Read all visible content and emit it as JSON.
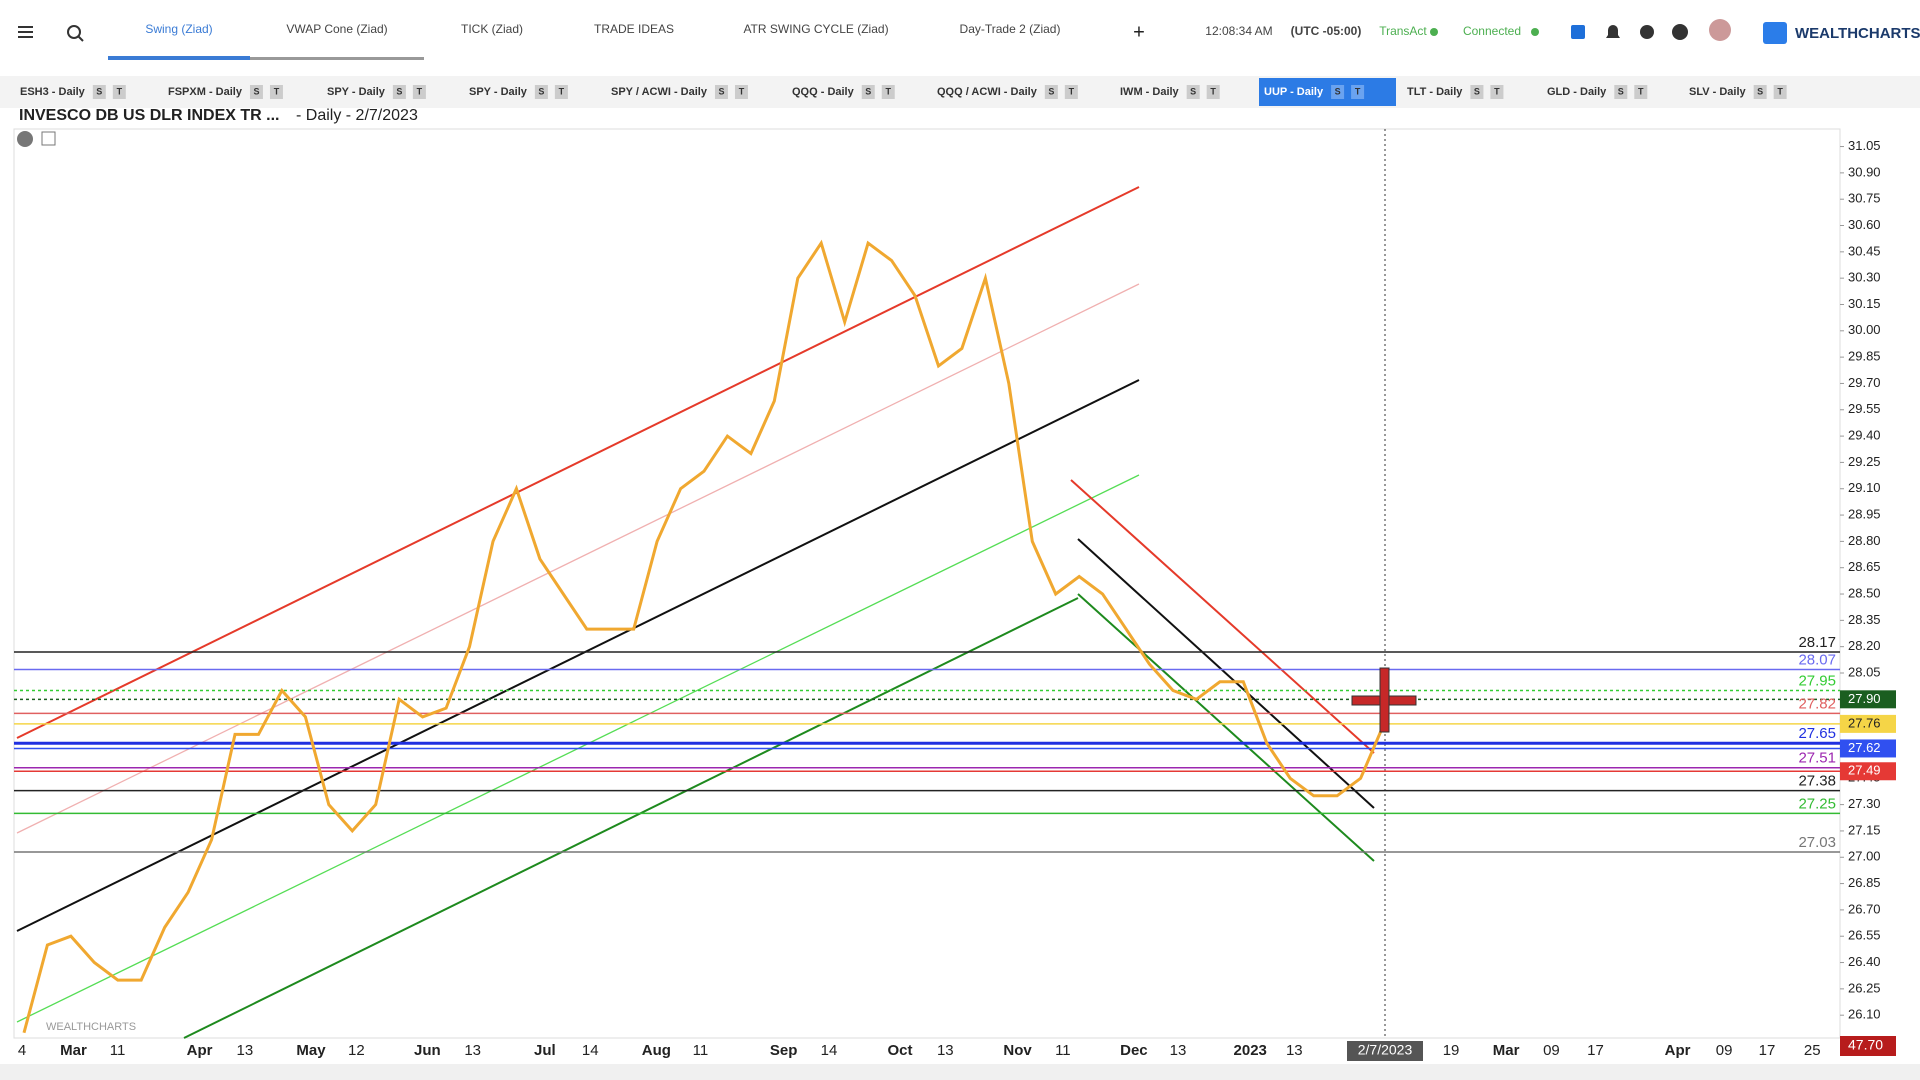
{
  "header": {
    "tabs": [
      "Swing (Ziad)",
      "VWAP Cone (Ziad)",
      "TICK (Ziad)",
      "TRADE IDEAS",
      "ATR SWING CYCLE (Ziad)",
      "Day-Trade 2 (Ziad)"
    ],
    "time": "12:08:34 AM",
    "timezone": "(UTC -05:00)",
    "transact": "TransAct",
    "connection": "Connected",
    "logo": "WEALTHCHARTS"
  },
  "symbol_tabs": [
    "ESH3 - Daily",
    "FSPXM - Daily",
    "SPY - Daily",
    "SPY - Daily",
    "SPY / ACWI - Daily",
    "QQQ - Daily",
    "QQQ / ACWI - Daily",
    "IWM - Daily",
    "UUP - Daily",
    "TLT - Daily",
    "GLD - Daily",
    "SLV - Daily"
  ],
  "tab_buttons": [
    "S",
    "T"
  ],
  "chart_data": {
    "type": "line",
    "title": "INVESCO DB US DLR INDEX TR ...",
    "subtitle": "- Daily - 2/7/2023",
    "watermark": "WEALTHCHARTS",
    "series": [
      {
        "color": "#f0a830",
        "values": [
          26.0,
          26.5,
          26.55,
          26.4,
          26.3,
          26.3,
          26.6,
          26.8,
          27.1,
          27.7,
          27.7,
          27.95,
          27.8,
          27.3,
          27.15,
          27.3,
          27.9,
          27.8,
          27.85,
          28.2,
          28.8,
          29.1,
          28.7,
          28.5,
          28.3,
          28.3,
          28.3,
          28.8,
          29.1,
          29.2,
          29.4,
          29.3,
          29.6,
          30.3,
          30.5,
          30.05,
          30.5,
          30.4,
          30.2,
          29.8,
          29.9,
          30.3,
          29.7,
          28.8,
          28.5,
          28.6,
          28.5,
          28.3,
          28.1,
          27.95,
          27.9,
          28.0,
          28.0,
          27.65,
          27.45,
          27.35,
          27.35,
          27.45,
          27.76
        ]
      }
    ],
    "x_labels": [
      "4",
      "Mar",
      "11",
      "Apr",
      "13",
      "May",
      "12",
      "Jun",
      "13",
      "Jul",
      "14",
      "Aug",
      "11",
      "Sep",
      "14",
      "Oct",
      "13",
      "Nov",
      "11",
      "Dec",
      "13",
      "2023",
      "13",
      "19",
      "Mar",
      "09",
      "17",
      "Apr",
      "09",
      "17",
      "25"
    ],
    "cursor_date": "2/7/2023",
    "bottom_label": "47.70",
    "ylim": [
      25.97,
      31.15
    ],
    "yticks": [
      {
        "value": 26.1,
        "label": "26.10"
      },
      26.25,
      {
        "value": 26.4,
        "label": "26.40"
      },
      26.55,
      {
        "value": 26.7,
        "label": "26.70"
      },
      26.85,
      {
        "value": 27.0,
        "label": "27.00"
      },
      27.15,
      {
        "value": 27.3,
        "label": "27.30"
      },
      27.45,
      {
        "value": 27.6,
        "label": "27.60"
      },
      27.75,
      {
        "value": 27.9,
        "label": "27.90"
      },
      28.05,
      {
        "value": 28.2,
        "label": "28.20"
      },
      28.35,
      {
        "value": 28.5,
        "label": "28.50"
      },
      28.65,
      {
        "value": 28.8,
        "label": "28.80"
      },
      28.95,
      {
        "value": 29.1,
        "label": "29.10"
      },
      29.25,
      {
        "value": 29.4,
        "label": "29.40"
      },
      29.55,
      {
        "value": 29.7,
        "label": "29.70"
      },
      29.85,
      {
        "value": 30.0,
        "label": "30.00"
      },
      30.15,
      {
        "value": 30.3,
        "label": "30.30"
      },
      30.45,
      {
        "value": 30.6,
        "label": "30.60"
      },
      30.75,
      {
        "value": 30.9,
        "label": "30.90"
      },
      31.05
    ],
    "grid": false,
    "price_levels": [
      {
        "value": 28.17,
        "color": "#222222",
        "boxed": false
      },
      {
        "value": 28.07,
        "color": "#6a6af0",
        "boxed": false
      },
      {
        "value": 27.95,
        "color": "#33cc33",
        "boxed": false
      },
      {
        "value": 27.9,
        "label": "27.90",
        "color": "#1b5e20",
        "boxed": true
      },
      {
        "value": 27.82,
        "color": "#e06060",
        "boxed": false
      },
      {
        "value": 27.76,
        "color": "#f5d547",
        "boxed": true
      },
      {
        "value": 27.65,
        "color": "#2030e0",
        "boxed": false
      },
      {
        "value": 27.62,
        "color": "#3050f0",
        "boxed": true
      },
      {
        "value": 27.51,
        "color": "#9c27b0",
        "boxed": false
      },
      {
        "value": 27.49,
        "color": "#e53935",
        "boxed": true
      },
      {
        "value": 27.38,
        "color": "#222222",
        "boxed": false
      },
      {
        "value": 27.25,
        "color": "#33bb33",
        "boxed": false
      },
      {
        "value": 27.03,
        "color": "#777777",
        "boxed": false
      }
    ]
  }
}
